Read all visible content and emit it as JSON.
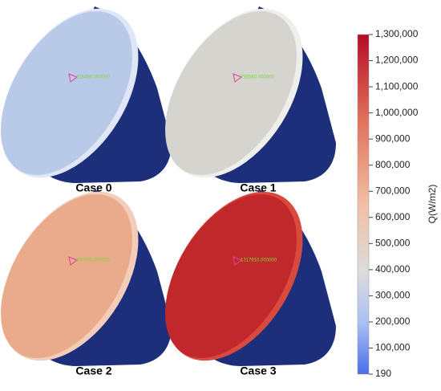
{
  "panels": [
    {
      "label": "Case 0",
      "probe": "216496.000000"
    },
    {
      "label": "Case 1",
      "probe": "295560.000000"
    },
    {
      "label": "Case 2",
      "probe": "650760.000000"
    },
    {
      "label": "Case 3",
      "probe": "1317910.000000"
    }
  ],
  "colorbar": {
    "title": "Q(W/m2)",
    "ticks": [
      {
        "value": 190,
        "label": "190"
      },
      {
        "value": 100000,
        "label": "100,000"
      },
      {
        "value": 200000,
        "label": "200,000"
      },
      {
        "value": 300000,
        "label": "300,000"
      },
      {
        "value": 400000,
        "label": "400,000"
      },
      {
        "value": 500000,
        "label": "500,000"
      },
      {
        "value": 600000,
        "label": "600,000"
      },
      {
        "value": 700000,
        "label": "700,000"
      },
      {
        "value": 800000,
        "label": "800,000"
      },
      {
        "value": 900000,
        "label": "900,000"
      },
      {
        "value": 1000000,
        "label": "1,000,000"
      },
      {
        "value": 1100000,
        "label": "1,100,000"
      },
      {
        "value": 1200000,
        "label": "1,200,000"
      },
      {
        "value": 1300000,
        "label": "1,300,000"
      }
    ]
  }
}
